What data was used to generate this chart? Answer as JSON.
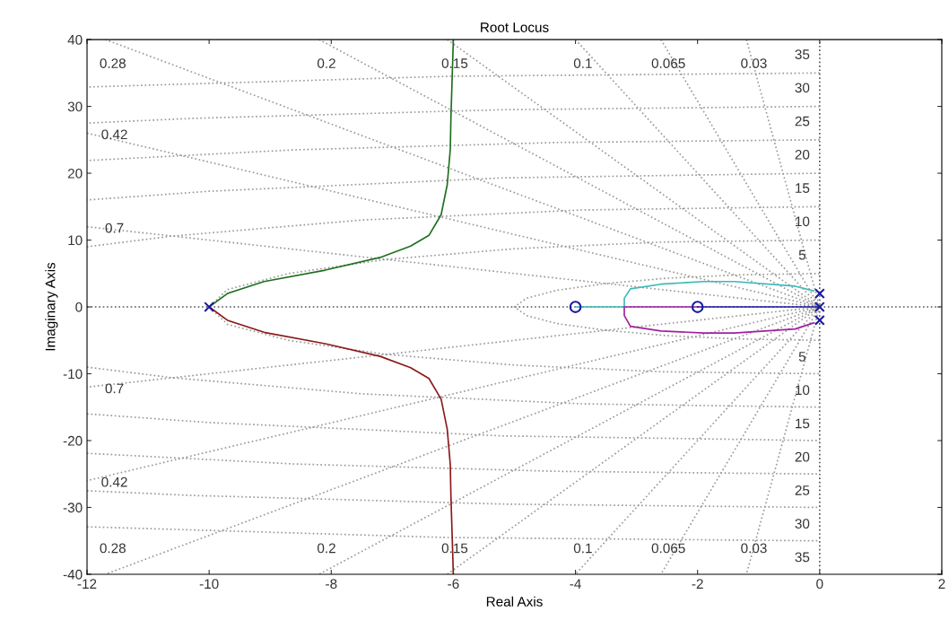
{
  "chart_data": {
    "type": "line",
    "title": "Root Locus",
    "xlabel": "Real Axis",
    "ylabel": "Imaginary Axis",
    "xlim": [
      -12,
      2
    ],
    "xticks": [
      -12,
      -10,
      -8,
      -6,
      -4,
      -2,
      0,
      2
    ],
    "ylim": [
      -40,
      40
    ],
    "yticks": [
      -40,
      -30,
      -20,
      -10,
      0,
      10,
      20,
      30,
      40
    ],
    "grid": false,
    "legend": false,
    "series": [
      {
        "type": "line",
        "color": "#555555",
        "line_style": "dotted",
        "marker": "none",
        "x": [
          -12,
          2
        ],
        "values": [
          0,
          0
        ]
      },
      {
        "type": "line",
        "color": "#555555",
        "line_style": "dotted",
        "marker": "none",
        "x": [
          0,
          0
        ],
        "values": [
          -40,
          40
        ]
      },
      {
        "type": "line",
        "color": "#999999",
        "line_style": "dotted",
        "marker": "none",
        "x": [
          -1.2,
          0,
          -1.2
        ],
        "values": [
          40,
          0,
          -40
        ]
      },
      {
        "type": "line",
        "color": "#999999",
        "line_style": "dotted",
        "marker": "none",
        "x": [
          -2.6,
          0,
          -2.6
        ],
        "values": [
          40,
          0,
          -40
        ]
      },
      {
        "type": "line",
        "color": "#999999",
        "line_style": "dotted",
        "marker": "none",
        "x": [
          -4,
          0,
          -4
        ],
        "values": [
          40,
          0,
          -40
        ]
      },
      {
        "type": "line",
        "color": "#999999",
        "line_style": "dotted",
        "marker": "none",
        "x": [
          -6.1,
          0,
          -6.1
        ],
        "values": [
          40,
          0,
          -40
        ]
      },
      {
        "type": "line",
        "color": "#999999",
        "line_style": "dotted",
        "marker": "none",
        "x": [
          -8.2,
          0,
          -8.2
        ],
        "values": [
          40,
          0,
          -40
        ]
      },
      {
        "type": "line",
        "color": "#999999",
        "line_style": "dotted",
        "marker": "none",
        "x": [
          -11.7,
          0,
          -11.7
        ],
        "values": [
          40,
          0,
          -40
        ]
      },
      {
        "type": "line",
        "color": "#999999",
        "line_style": "dotted",
        "marker": "none",
        "x": [
          -12,
          0,
          -12
        ],
        "values": [
          26,
          0,
          -26
        ]
      },
      {
        "type": "line",
        "color": "#999999",
        "line_style": "dotted",
        "marker": "none",
        "x": [
          -12,
          0,
          -12
        ],
        "values": [
          12,
          0,
          -12
        ]
      },
      {
        "type": "line",
        "color": "#999999",
        "line_style": "dotted",
        "marker": "none",
        "x": [
          0,
          -1.3,
          -2.5,
          -3.5,
          -4.3,
          -4.8,
          -5,
          -4.8,
          -4.3,
          -3.5,
          -2.5,
          -1.3,
          0
        ],
        "values": [
          5,
          4.8,
          4.3,
          3.5,
          2.5,
          1.3,
          0,
          -1.3,
          -2.5,
          -3.5,
          -4.3,
          -4.8,
          -5
        ]
      },
      {
        "type": "line",
        "color": "#999999",
        "line_style": "dotted",
        "marker": "none",
        "x": [
          0,
          -2.6,
          -5,
          -7.1,
          -8.7,
          -9.7,
          -10,
          -9.7,
          -8.7,
          -7.1,
          -5,
          -2.6,
          0
        ],
        "values": [
          10,
          9.7,
          8.7,
          7.1,
          5,
          2.6,
          0,
          -2.6,
          -5,
          -7.1,
          -8.7,
          -9.7,
          -10
        ]
      },
      {
        "type": "line",
        "color": "#999999",
        "line_style": "dotted",
        "marker": "none",
        "x": [
          0,
          -3.9,
          -7.5,
          -10.6,
          -12,
          null,
          -12,
          -10.6,
          -7.5,
          -3.9,
          0
        ],
        "values": [
          15,
          14.5,
          13,
          10.6,
          9,
          null,
          -9,
          -10.6,
          -13,
          -14.5,
          -15
        ]
      },
      {
        "type": "line",
        "color": "#999999",
        "line_style": "dotted",
        "marker": "none",
        "x": [
          0,
          -5.2,
          -10,
          -12,
          null,
          -12,
          -10,
          -5.2,
          0
        ],
        "values": [
          20,
          19.3,
          17.3,
          16,
          null,
          -16,
          -17.3,
          -19.3,
          -20
        ]
      },
      {
        "type": "line",
        "color": "#999999",
        "line_style": "dotted",
        "marker": "none",
        "x": [
          0,
          -4.3,
          -8.6,
          -12,
          null,
          -12,
          -8.6,
          -4.3,
          0
        ],
        "values": [
          25,
          24.6,
          23.5,
          21.9,
          null,
          -21.9,
          -23.5,
          -24.6,
          -25
        ]
      },
      {
        "type": "line",
        "color": "#999999",
        "line_style": "dotted",
        "marker": "none",
        "x": [
          0,
          -5.2,
          -10.3,
          -12,
          null,
          -12,
          -10.3,
          -5.2,
          0
        ],
        "values": [
          30,
          29.5,
          28.2,
          27.5,
          null,
          -27.5,
          -28.2,
          -29.5,
          -30
        ]
      },
      {
        "type": "line",
        "color": "#999999",
        "line_style": "dotted",
        "marker": "none",
        "x": [
          0,
          -6.1,
          -12,
          null,
          -12,
          -6.1,
          0
        ],
        "values": [
          35,
          34.5,
          32.9,
          null,
          -32.9,
          -34.5,
          -35
        ]
      },
      {
        "color": "#1f6f1f",
        "line_style": "solid",
        "marker": "none",
        "x": [
          -10,
          -9.7,
          -9.1,
          -8.1,
          -7.2,
          -6.7,
          -6.4,
          -6.2,
          -6.1,
          -6.05,
          -6.04,
          -6.0
        ],
        "values": [
          0,
          2,
          3.8,
          5.5,
          7.4,
          9.1,
          10.7,
          13.8,
          18.3,
          23.6,
          28.2,
          40
        ]
      },
      {
        "color": "#8b1a1a",
        "line_style": "solid",
        "marker": "none",
        "x": [
          -10,
          -9.7,
          -9.1,
          -8.1,
          -7.2,
          -6.7,
          -6.4,
          -6.2,
          -6.1,
          -6.05,
          -6.04,
          -6.0
        ],
        "values": [
          0,
          -2,
          -3.8,
          -5.5,
          -7.4,
          -9.1,
          -10.7,
          -13.8,
          -18.3,
          -23.6,
          -28.2,
          -40
        ]
      },
      {
        "color": "#3cb8b8",
        "line_style": "solid",
        "marker": "none",
        "x": [
          -0.1,
          -0.4,
          -1.4,
          -1.9,
          -2.6,
          -3.1,
          -3.2,
          -3.2,
          -4
        ],
        "values": [
          2.4,
          3.1,
          3.8,
          3.8,
          3.4,
          2.7,
          1.3,
          0,
          0
        ]
      },
      {
        "color": "#a020a0",
        "line_style": "solid",
        "marker": "none",
        "x": [
          -0.1,
          -0.4,
          -1.4,
          -1.9,
          -2.6,
          -3.1,
          -3.2,
          -3.2,
          -2
        ],
        "values": [
          -2.4,
          -3.3,
          -3.9,
          -3.9,
          -3.6,
          -2.9,
          -1.3,
          0,
          0
        ]
      },
      {
        "color": "#1a1aa0",
        "line_style": "solid",
        "marker": "none",
        "x": [
          0,
          -2
        ],
        "values": [
          0,
          0
        ]
      },
      {
        "type": "scatter",
        "color": "#1a1aa0",
        "marker": "cross",
        "x": [
          -10,
          0,
          0,
          0
        ],
        "values": [
          0,
          2,
          0,
          -2
        ]
      },
      {
        "type": "scatter",
        "color": "#1a1aa0",
        "marker": "circle",
        "x": [
          -4,
          -2
        ],
        "values": [
          0,
          0
        ]
      }
    ],
    "annotations": [
      {
        "text": "0.03",
        "x": -1.2,
        "y": 40
      },
      {
        "text": "0.065",
        "x": -2.6,
        "y": 40
      },
      {
        "text": "0.1",
        "x": -4,
        "y": 40
      },
      {
        "text": "0.15",
        "x": -6.1,
        "y": 40
      },
      {
        "text": "0.2",
        "x": -8.2,
        "y": 40
      },
      {
        "text": "0.28",
        "x": -11.7,
        "y": 40
      },
      {
        "text": "0.03",
        "x": -1.2,
        "y": -40
      },
      {
        "text": "0.065",
        "x": -2.6,
        "y": -40
      },
      {
        "text": "0.1",
        "x": -4,
        "y": -40
      },
      {
        "text": "0.15",
        "x": -6.1,
        "y": -40
      },
      {
        "text": "0.2",
        "x": -8.2,
        "y": -40
      },
      {
        "text": "0.28",
        "x": -11.7,
        "y": -40
      },
      {
        "text": "0.42",
        "x": -12,
        "y": 26
      },
      {
        "text": "0.7",
        "x": -12,
        "y": 12
      },
      {
        "text": "0.42",
        "x": -12,
        "y": -26
      },
      {
        "text": "0.7",
        "x": -12,
        "y": -12
      },
      {
        "text": "35",
        "x": 0,
        "y": 35
      },
      {
        "text": "30",
        "x": 0,
        "y": 30
      },
      {
        "text": "25",
        "x": 0,
        "y": 25
      },
      {
        "text": "20",
        "x": 0,
        "y": 20
      },
      {
        "text": "15",
        "x": 0,
        "y": 15
      },
      {
        "text": "10",
        "x": 0,
        "y": 10
      },
      {
        "text": "5",
        "x": 0,
        "y": 5
      },
      {
        "text": "5",
        "x": 0,
        "y": -5
      },
      {
        "text": "10",
        "x": 0,
        "y": -10
      },
      {
        "text": "15",
        "x": 0,
        "y": -15
      },
      {
        "text": "20",
        "x": 0,
        "y": -20
      },
      {
        "text": "25",
        "x": 0,
        "y": -25
      },
      {
        "text": "30",
        "x": 0,
        "y": -30
      },
      {
        "text": "35",
        "x": 0,
        "y": -35
      }
    ]
  }
}
